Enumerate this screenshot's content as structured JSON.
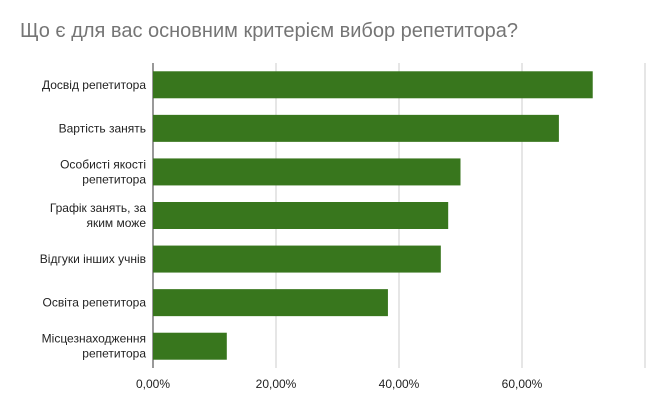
{
  "chart_data": {
    "type": "bar",
    "orientation": "horizontal",
    "title": "Що є для вас основним критерієм вибор репетитора?",
    "categories": [
      [
        "Досвід репетитора"
      ],
      [
        "Вартість занять"
      ],
      [
        "Особисті якості",
        "репетитора"
      ],
      [
        "Графік занять, за",
        "яким може"
      ],
      [
        "Відгуки інших учнів"
      ],
      [
        "Освіта репетитора"
      ],
      [
        "Місцезнаходження",
        "репетитора"
      ]
    ],
    "values": [
      71.5,
      66.0,
      50.0,
      48.0,
      46.8,
      38.2,
      12.0
    ],
    "xlim": [
      0,
      80
    ],
    "xticks": [
      "0,00%",
      "20,00%",
      "40,00%",
      "60,00%"
    ],
    "xtick_values": [
      0,
      20,
      40,
      60
    ],
    "grid": true,
    "legend": "none",
    "colors": {
      "bar": "#38761d",
      "grid": "#cccccc",
      "axis": "#333333"
    }
  }
}
